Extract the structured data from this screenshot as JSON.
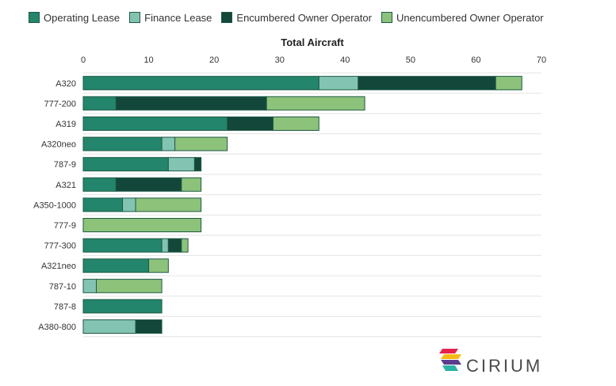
{
  "chart_data": {
    "type": "bar",
    "orientation": "horizontal",
    "stacked": true,
    "title": "Total Aircraft",
    "xlim": [
      0,
      70
    ],
    "xticks": [
      0,
      10,
      20,
      30,
      40,
      50,
      60,
      70
    ],
    "categories": [
      "A320",
      "777-200",
      "A319",
      "A320neo",
      "787-9",
      "A321",
      "A350-1000",
      "777-9",
      "777-300",
      "A321neo",
      "787-10",
      "787-8",
      "A380-800"
    ],
    "series": [
      {
        "name": "Operating Lease",
        "color": "#23856b",
        "values": [
          36,
          5,
          22,
          12,
          13,
          5,
          6,
          0,
          12,
          10,
          0,
          12,
          0
        ]
      },
      {
        "name": "Finance Lease",
        "color": "#83c3b2",
        "values": [
          6,
          0,
          0,
          2,
          4,
          0,
          2,
          0,
          1,
          0,
          2,
          0,
          8
        ]
      },
      {
        "name": "Encumbered Owner Operator",
        "color": "#12473a",
        "values": [
          21,
          23,
          7,
          0,
          1,
          10,
          0,
          0,
          2,
          0,
          0,
          0,
          4
        ]
      },
      {
        "name": "Unencumbered Owner Operator",
        "color": "#8cc27a",
        "values": [
          4,
          15,
          7,
          8,
          0,
          3,
          10,
          18,
          1,
          3,
          10,
          0,
          0
        ]
      }
    ],
    "legend_position": "top-left",
    "grid": "horizontal-row-separators"
  },
  "logo": {
    "text": "CIRIUM"
  }
}
